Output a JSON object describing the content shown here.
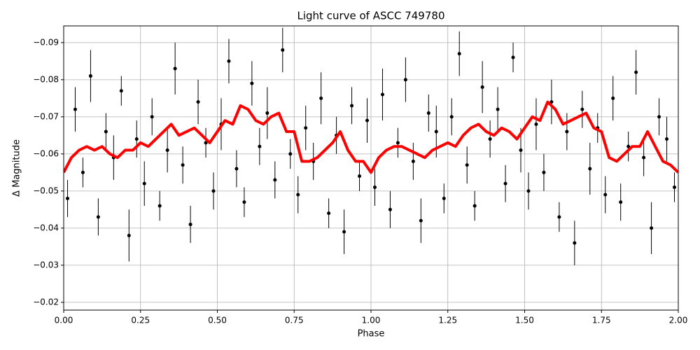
{
  "chart_data": {
    "type": "scatter",
    "title": "Light curve of ASCC 749780",
    "x_label": "Phase",
    "y_label": "Δ Magnitude",
    "grid": true,
    "xlim": [
      0,
      2
    ],
    "ylim": [
      -0.0179,
      -0.0945
    ],
    "xticks": [
      {
        "value": 0,
        "label": "0.00"
      },
      {
        "value": 0.25,
        "label": "0.25"
      },
      {
        "value": 0.5,
        "label": "0.50"
      },
      {
        "value": 0.75,
        "label": "0.75"
      },
      {
        "value": 1,
        "label": "1.00"
      },
      {
        "value": 1.25,
        "label": "1.25"
      },
      {
        "value": 1.5,
        "label": "1.50"
      },
      {
        "value": 1.75,
        "label": "1.75"
      },
      {
        "value": 2,
        "label": "2.00"
      }
    ],
    "yticks": [
      {
        "value": -0.09,
        "label": "−0.09"
      },
      {
        "value": -0.08,
        "label": "−0.08"
      },
      {
        "value": -0.07,
        "label": "−0.07"
      },
      {
        "value": -0.06,
        "label": "−0.06"
      },
      {
        "value": -0.05,
        "label": "−0.05"
      },
      {
        "value": -0.04,
        "label": "−0.04"
      },
      {
        "value": -0.03,
        "label": "−0.03"
      },
      {
        "value": -0.02,
        "label": "−0.02"
      }
    ],
    "points": {
      "color": "#000000",
      "x": [
        0.0125,
        0.0375,
        0.0625,
        0.0875,
        0.1125,
        0.1375,
        0.1625,
        0.1875,
        0.2125,
        0.2375,
        0.2625,
        0.2875,
        0.3125,
        0.3375,
        0.3625,
        0.3875,
        0.4125,
        0.4375,
        0.4625,
        0.4875,
        0.5125,
        0.5375,
        0.5625,
        0.5875,
        0.6125,
        0.6375,
        0.6625,
        0.6875,
        0.7125,
        0.7375,
        0.7625,
        0.7875,
        0.8125,
        0.8375,
        0.8625,
        0.8875,
        0.9125,
        0.9375,
        0.9625,
        0.9875,
        1.0125,
        1.0375,
        1.0625,
        1.0875,
        1.1125,
        1.1375,
        1.1625,
        1.1875,
        1.2125,
        1.2375,
        1.2625,
        1.2875,
        1.3125,
        1.3375,
        1.3625,
        1.3875,
        1.4125,
        1.4375,
        1.4625,
        1.4875,
        1.5125,
        1.5375,
        1.5625,
        1.5875,
        1.6125,
        1.6375,
        1.6625,
        1.6875,
        1.7125,
        1.7375,
        1.7625,
        1.7875,
        1.8125,
        1.8375,
        1.8625,
        1.8875,
        1.9125,
        1.9375,
        1.9625,
        1.9875
      ],
      "values": [
        -0.048,
        -0.072,
        -0.055,
        -0.081,
        -0.043,
        -0.066,
        -0.059,
        -0.077,
        -0.038,
        -0.064,
        -0.052,
        -0.07,
        -0.046,
        -0.061,
        -0.083,
        -0.057,
        -0.041,
        -0.074,
        -0.063,
        -0.05,
        -0.068,
        -0.085,
        -0.056,
        -0.047,
        -0.079,
        -0.062,
        -0.071,
        -0.053,
        -0.088,
        -0.06,
        -0.049,
        -0.067,
        -0.058,
        -0.075,
        -0.044,
        -0.065,
        -0.039,
        -0.073,
        -0.054,
        -0.069,
        -0.051,
        -0.076,
        -0.045,
        -0.063,
        -0.08,
        -0.058,
        -0.042,
        -0.071,
        -0.066,
        -0.048,
        -0.07,
        -0.087,
        -0.057,
        -0.046,
        -0.078,
        -0.064,
        -0.072,
        -0.052,
        -0.086,
        -0.061,
        -0.05,
        -0.068,
        -0.055,
        -0.074,
        -0.043,
        -0.066,
        -0.036,
        -0.072,
        -0.056,
        -0.067,
        -0.049,
        -0.075,
        -0.047,
        -0.062,
        -0.082,
        -0.059,
        -0.04,
        -0.07,
        -0.064,
        -0.051
      ],
      "errors": [
        0.005,
        0.006,
        0.004,
        0.007,
        0.005,
        0.005,
        0.006,
        0.004,
        0.007,
        0.005,
        0.006,
        0.005,
        0.004,
        0.006,
        0.007,
        0.005,
        0.005,
        0.006,
        0.004,
        0.005,
        0.007,
        0.006,
        0.005,
        0.004,
        0.006,
        0.005,
        0.007,
        0.005,
        0.006,
        0.004,
        0.005,
        0.006,
        0.005,
        0.007,
        0.004,
        0.005,
        0.006,
        0.005,
        0.004,
        0.006,
        0.005,
        0.007,
        0.005,
        0.004,
        0.006,
        0.005,
        0.006,
        0.005,
        0.007,
        0.004,
        0.005,
        0.006,
        0.005,
        0.004,
        0.007,
        0.005,
        0.006,
        0.005,
        0.004,
        0.006,
        0.005,
        0.007,
        0.005,
        0.006,
        0.004,
        0.005,
        0.006,
        0.005,
        0.007,
        0.004,
        0.005,
        0.006,
        0.005,
        0.004,
        0.006,
        0.005,
        0.007,
        0.005,
        0.006,
        0.004
      ]
    },
    "line": {
      "color": "#ff0000",
      "x": [
        0,
        0.025,
        0.05,
        0.075,
        0.1,
        0.125,
        0.15,
        0.175,
        0.2,
        0.225,
        0.25,
        0.275,
        0.3,
        0.325,
        0.35,
        0.375,
        0.4,
        0.425,
        0.45,
        0.475,
        0.5,
        0.525,
        0.55,
        0.575,
        0.6,
        0.625,
        0.65,
        0.675,
        0.7,
        0.725,
        0.75,
        0.775,
        0.8,
        0.825,
        0.85,
        0.875,
        0.9,
        0.925,
        0.95,
        0.975,
        1,
        1.025,
        1.05,
        1.075,
        1.1,
        1.125,
        1.15,
        1.175,
        1.2,
        1.225,
        1.25,
        1.275,
        1.3,
        1.325,
        1.35,
        1.375,
        1.4,
        1.425,
        1.45,
        1.475,
        1.5,
        1.525,
        1.55,
        1.575,
        1.6,
        1.625,
        1.65,
        1.675,
        1.7,
        1.725,
        1.75,
        1.775,
        1.8,
        1.825,
        1.85,
        1.875,
        1.9,
        1.925,
        1.95,
        1.975,
        2
      ],
      "values": [
        -0.055,
        -0.059,
        -0.061,
        -0.062,
        -0.061,
        -0.062,
        -0.06,
        -0.059,
        -0.061,
        -0.061,
        -0.063,
        -0.062,
        -0.064,
        -0.066,
        -0.068,
        -0.065,
        -0.066,
        -0.067,
        -0.065,
        -0.063,
        -0.066,
        -0.069,
        -0.068,
        -0.073,
        -0.072,
        -0.069,
        -0.068,
        -0.07,
        -0.071,
        -0.066,
        -0.066,
        -0.058,
        -0.058,
        -0.059,
        -0.061,
        -0.063,
        -0.066,
        -0.061,
        -0.058,
        -0.058,
        -0.055,
        -0.059,
        -0.061,
        -0.062,
        -0.062,
        -0.061,
        -0.06,
        -0.059,
        -0.061,
        -0.062,
        -0.063,
        -0.062,
        -0.065,
        -0.067,
        -0.068,
        -0.066,
        -0.065,
        -0.067,
        -0.066,
        -0.064,
        -0.067,
        -0.07,
        -0.069,
        -0.074,
        -0.072,
        -0.068,
        -0.069,
        -0.07,
        -0.071,
        -0.067,
        -0.066,
        -0.059,
        -0.058,
        -0.06,
        -0.062,
        -0.062,
        -0.066,
        -0.062,
        -0.058,
        -0.057,
        -0.055
      ]
    }
  }
}
